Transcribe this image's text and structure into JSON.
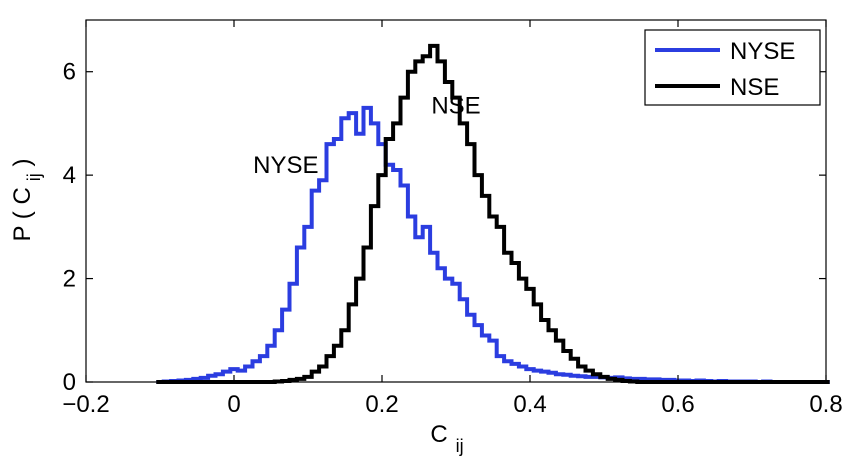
{
  "chart_data": {
    "type": "line",
    "style": "step-histogram",
    "xlabel": "C",
    "xlabel_sub": "ij",
    "ylabel": "P ( C",
    "ylabel_sub": "ij",
    "ylabel_suffix": " )",
    "xlim": [
      -0.2,
      0.8
    ],
    "ylim": [
      0,
      7
    ],
    "xticks": [
      -0.2,
      0,
      0.2,
      0.4,
      0.6,
      0.8
    ],
    "xtick_labels": [
      "−0.2",
      "0",
      "0.2",
      "0.4",
      "0.6",
      "0.8"
    ],
    "yticks": [
      0,
      2,
      4,
      6
    ],
    "ytick_labels": [
      "0",
      "2",
      "4",
      "6"
    ],
    "grid": false,
    "legend_position": "top-right",
    "series": [
      {
        "name": "NYSE",
        "color": "#2b3de0",
        "x": [
          -0.1,
          -0.09,
          -0.08,
          -0.07,
          -0.06,
          -0.05,
          -0.04,
          -0.03,
          -0.02,
          -0.01,
          0.0,
          0.01,
          0.02,
          0.03,
          0.04,
          0.05,
          0.06,
          0.07,
          0.08,
          0.09,
          0.1,
          0.11,
          0.12,
          0.13,
          0.14,
          0.15,
          0.16,
          0.17,
          0.18,
          0.19,
          0.2,
          0.21,
          0.22,
          0.23,
          0.24,
          0.25,
          0.26,
          0.27,
          0.28,
          0.29,
          0.3,
          0.31,
          0.32,
          0.33,
          0.34,
          0.35,
          0.36,
          0.37,
          0.38,
          0.39,
          0.4,
          0.41,
          0.42,
          0.43,
          0.44,
          0.45,
          0.46,
          0.47,
          0.48,
          0.49,
          0.5,
          0.51,
          0.52,
          0.53,
          0.54,
          0.55,
          0.56,
          0.57,
          0.58,
          0.59,
          0.6,
          0.61,
          0.62,
          0.63,
          0.64,
          0.65,
          0.66,
          0.67,
          0.68,
          0.69,
          0.7,
          0.71,
          0.72,
          0.73,
          0.74,
          0.75,
          0.76,
          0.77,
          0.78,
          0.79,
          0.8
        ],
        "y": [
          0.0,
          0.01,
          0.02,
          0.03,
          0.04,
          0.06,
          0.08,
          0.12,
          0.15,
          0.2,
          0.25,
          0.22,
          0.3,
          0.4,
          0.5,
          0.7,
          1.0,
          1.4,
          1.9,
          2.6,
          3.0,
          3.7,
          3.9,
          4.6,
          4.7,
          5.1,
          5.2,
          4.8,
          5.3,
          5.0,
          4.6,
          4.2,
          4.1,
          3.8,
          3.2,
          2.8,
          3.0,
          2.5,
          2.2,
          2.0,
          1.9,
          1.6,
          1.3,
          1.1,
          0.9,
          0.8,
          0.5,
          0.4,
          0.35,
          0.3,
          0.25,
          0.22,
          0.2,
          0.18,
          0.15,
          0.14,
          0.12,
          0.11,
          0.1,
          0.1,
          0.09,
          0.08,
          0.09,
          0.07,
          0.06,
          0.06,
          0.05,
          0.05,
          0.04,
          0.04,
          0.03,
          0.03,
          0.02,
          0.03,
          0.02,
          0.01,
          0.02,
          0.01,
          0.01,
          0.01,
          0.01,
          0.0,
          0.01,
          0.0,
          0.0,
          0.0,
          0.0,
          0.0,
          0.0,
          0.0,
          0.0
        ]
      },
      {
        "name": "NSE",
        "color": "#000000",
        "x": [
          -0.1,
          -0.09,
          -0.08,
          -0.07,
          -0.06,
          -0.05,
          -0.04,
          -0.03,
          -0.02,
          -0.01,
          0.0,
          0.01,
          0.02,
          0.03,
          0.04,
          0.05,
          0.06,
          0.07,
          0.08,
          0.09,
          0.1,
          0.11,
          0.12,
          0.13,
          0.14,
          0.15,
          0.16,
          0.17,
          0.18,
          0.19,
          0.2,
          0.21,
          0.22,
          0.23,
          0.24,
          0.25,
          0.26,
          0.27,
          0.28,
          0.29,
          0.3,
          0.31,
          0.32,
          0.33,
          0.34,
          0.35,
          0.36,
          0.37,
          0.38,
          0.39,
          0.4,
          0.41,
          0.42,
          0.43,
          0.44,
          0.45,
          0.46,
          0.47,
          0.48,
          0.49,
          0.5,
          0.51,
          0.52,
          0.53,
          0.54,
          0.55,
          0.56,
          0.57,
          0.58,
          0.59,
          0.6,
          0.61,
          0.62,
          0.63,
          0.64,
          0.65,
          0.66,
          0.67,
          0.68,
          0.69,
          0.7,
          0.71,
          0.72,
          0.73,
          0.74,
          0.75,
          0.76,
          0.77,
          0.78,
          0.79,
          0.8
        ],
        "y": [
          0.0,
          0.0,
          0.0,
          0.0,
          0.0,
          0.0,
          0.0,
          0.0,
          0.0,
          0.0,
          0.0,
          0.0,
          0.0,
          0.0,
          0.0,
          0.0,
          0.01,
          0.02,
          0.04,
          0.06,
          0.1,
          0.2,
          0.3,
          0.5,
          0.7,
          1.0,
          1.5,
          2.0,
          2.6,
          3.4,
          4.0,
          4.7,
          5.0,
          5.5,
          6.0,
          6.2,
          6.3,
          6.5,
          6.2,
          5.8,
          5.5,
          5.0,
          4.6,
          4.0,
          3.6,
          3.2,
          3.0,
          2.5,
          2.3,
          2.0,
          1.8,
          1.5,
          1.2,
          1.0,
          0.8,
          0.6,
          0.45,
          0.3,
          0.22,
          0.15,
          0.1,
          0.06,
          0.04,
          0.02,
          0.01,
          0.0,
          0.0,
          0.0,
          0.0,
          0.0,
          0.0,
          0.0,
          0.0,
          0.0,
          0.0,
          0.0,
          0.0,
          0.0,
          0.0,
          0.0,
          0.0,
          0.0,
          0.0,
          0.0,
          0.0,
          0.0,
          0.0,
          0.0,
          0.0,
          0.0,
          0.0
        ]
      }
    ],
    "annotations": [
      {
        "text": "NYSE",
        "x": 0.07,
        "y": 4.2
      },
      {
        "text": "NSE",
        "x": 0.3,
        "y": 5.35
      }
    ]
  }
}
